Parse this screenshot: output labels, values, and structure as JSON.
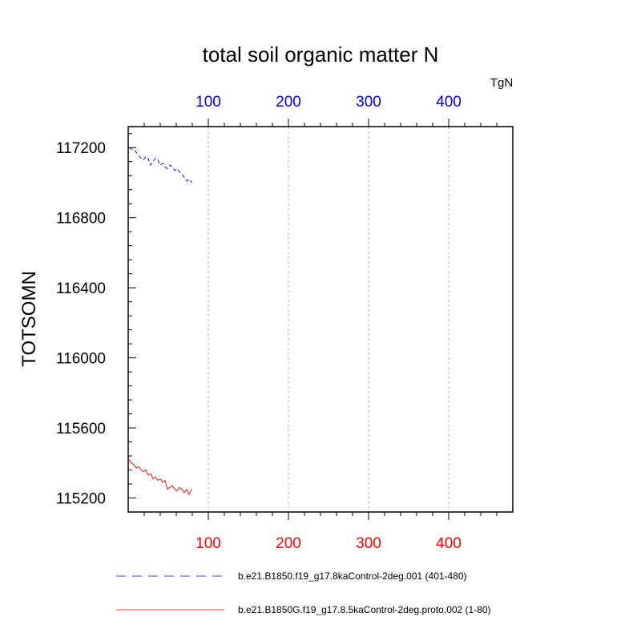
{
  "chart_data": {
    "type": "line",
    "title": "total soil organic matter N",
    "units": "TgN",
    "ylabel": "TOTSOMN",
    "xlim": [
      0,
      480
    ],
    "ylim": [
      115120,
      117320
    ],
    "y_ticks": [
      "115200",
      "115600",
      "116000",
      "116400",
      "116800",
      "117200"
    ],
    "x_top_ticks": [
      "100",
      "200",
      "300",
      "400"
    ],
    "x_bottom_ticks": [
      "100",
      "200",
      "300",
      "400"
    ],
    "top_axis_color": "#0000ff",
    "bottom_axis_color": "#ff0000",
    "grid": "vertical dashed",
    "legend_position": "bottom",
    "series": [
      {
        "name": "b.e21.B1850.f19_g17.8kaControl-2deg.001 (401-480)",
        "color": "#0000ff",
        "style": "dashed",
        "x": [
          1,
          5,
          9,
          13,
          16,
          19,
          22,
          25,
          28,
          31,
          34,
          37,
          40,
          43,
          46,
          49,
          52,
          55,
          58,
          61,
          64,
          67,
          70,
          73,
          76,
          80
        ],
        "values": [
          117200,
          117190,
          117180,
          117155,
          117140,
          117130,
          117150,
          117135,
          117100,
          117120,
          117140,
          117130,
          117100,
          117110,
          117090,
          117080,
          117100,
          117090,
          117070,
          117080,
          117060,
          117050,
          117030,
          117010,
          117020,
          117000
        ]
      },
      {
        "name": "b.e21.B1850G.f19_g17.8.5kaControl-2deg.proto.002 (1-80)",
        "color": "#ff0000",
        "style": "solid",
        "x": [
          1,
          4,
          7,
          10,
          13,
          16,
          19,
          22,
          25,
          28,
          31,
          34,
          37,
          40,
          43,
          46,
          49,
          52,
          55,
          58,
          61,
          64,
          67,
          70,
          73,
          76,
          78,
          80
        ],
        "values": [
          115420,
          115400,
          115390,
          115370,
          115380,
          115360,
          115350,
          115360,
          115330,
          115340,
          115310,
          115320,
          115300,
          115310,
          115290,
          115300,
          115250,
          115260,
          115270,
          115250,
          115240,
          115260,
          115250,
          115230,
          115250,
          115220,
          115240,
          115250
        ]
      }
    ]
  }
}
